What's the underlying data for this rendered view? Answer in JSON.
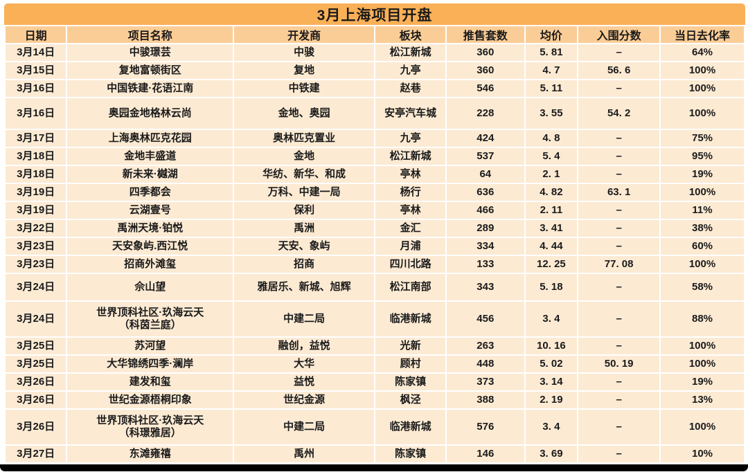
{
  "chart_data": {
    "type": "table",
    "title": "3月上海项目开盘",
    "columns": [
      "日期",
      "项目名称",
      "开发商",
      "板块",
      "推售套数",
      "均价",
      "入围分数",
      "当日去化率"
    ],
    "rows": [
      [
        "3月14日",
        "中骏璟芸",
        "中骏",
        "松江新城",
        "360",
        "5. 81",
        "–",
        "64%"
      ],
      [
        "3月15日",
        "复地富顿街区",
        "复地",
        "九亭",
        "360",
        "4. 7",
        "56. 6",
        "100%"
      ],
      [
        "3月16日",
        "中国铁建·花语江南",
        "中铁建",
        "赵巷",
        "546",
        "5. 11",
        "–",
        "100%"
      ],
      [
        "3月16日",
        "奥园金地格林云尚",
        "金地、奥园",
        "安亭汽车城",
        "228",
        "3. 55",
        "54. 2",
        "100%"
      ],
      [
        "3月17日",
        "上海奥林匹克花园",
        "奥林匹克置业",
        "九亭",
        "424",
        "4. 8",
        "–",
        "75%"
      ],
      [
        "3月18日",
        "金地丰盛道",
        "金地",
        "松江新城",
        "537",
        "5. 4",
        "–",
        "95%"
      ],
      [
        "3月18日",
        "新未来·樾湖",
        "华纺、新华、和成",
        "亭林",
        "64",
        "2. 1",
        "–",
        "19%"
      ],
      [
        "3月19日",
        "四季都会",
        "万科、中建一局",
        "杨行",
        "636",
        "4. 82",
        "63. 1",
        "100%"
      ],
      [
        "3月19日",
        "云湖壹号",
        "保利",
        "亭林",
        "466",
        "2. 11",
        "–",
        "11%"
      ],
      [
        "3月22日",
        "禹洲天境·铂悦",
        "禹洲",
        "金汇",
        "289",
        "3. 41",
        "–",
        "38%"
      ],
      [
        "3月23日",
        "天安象屿.西江悦",
        "天安、象屿",
        "月浦",
        "334",
        "4. 44",
        "–",
        "60%"
      ],
      [
        "3月23日",
        "招商外滩玺",
        "招商",
        "四川北路",
        "133",
        "12. 25",
        "77. 08",
        "100%"
      ],
      [
        "3月24日",
        "佘山望",
        "雅居乐、新城、旭辉",
        "松江南部",
        "343",
        "5. 18",
        "–",
        "58%"
      ],
      [
        "3月24日",
        "世界顶科社区·玖海云天\n（科茵兰庭）",
        "中建二局",
        "临港新城",
        "456",
        "3. 4",
        "–",
        "88%"
      ],
      [
        "3月25日",
        "苏河望",
        "融创，益悦",
        "光新",
        "263",
        "10. 16",
        "–",
        "100%"
      ],
      [
        "3月25日",
        "大华锦绣四季·澜岸",
        "大华",
        "顾村",
        "448",
        "5. 02",
        "50. 19",
        "100%"
      ],
      [
        "3月26日",
        "建发和玺",
        "益悦",
        "陈家镇",
        "373",
        "3. 14",
        "–",
        "19%"
      ],
      [
        "3月26日",
        "世纪金源梧桐印象",
        "世纪金源",
        "枫泾",
        "388",
        "2. 19",
        "–",
        "13%"
      ],
      [
        "3月26日",
        "世界顶科社区·玖海云天\n（科璟雅居）",
        "中建二局",
        "临港新城",
        "576",
        "3. 4",
        "–",
        "100%"
      ],
      [
        "3月27日",
        "东滩雍禧",
        "禹州",
        "陈家镇",
        "146",
        "3. 69",
        "–",
        "10%"
      ]
    ]
  },
  "colors": {
    "title_bg": "#F9B057",
    "header_bg": "#FBCD96",
    "cell_bg": "#FCEAD3",
    "grid": "#FFFFFF",
    "text": "#1A1A1A",
    "frame_bar": "#000000"
  }
}
